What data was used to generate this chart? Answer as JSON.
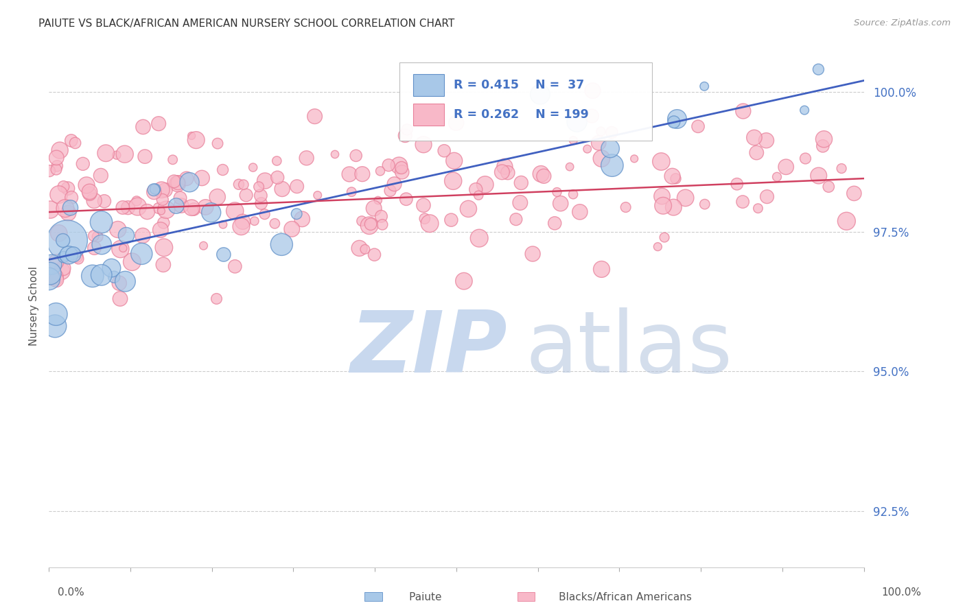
{
  "title": "PAIUTE VS BLACK/AFRICAN AMERICAN NURSERY SCHOOL CORRELATION CHART",
  "source": "Source: ZipAtlas.com",
  "ylabel": "Nursery School",
  "xlim": [
    0.0,
    1.0
  ],
  "ylim": [
    0.915,
    1.008
  ],
  "yticks": [
    0.925,
    0.95,
    0.975,
    1.0
  ],
  "ytick_labels": [
    "92.5%",
    "95.0%",
    "97.5%",
    "100.0%"
  ],
  "legend_r1": "R = 0.415",
  "legend_n1": "N =  37",
  "legend_r2": "R = 0.262",
  "legend_n2": "N = 199",
  "blue_fill": "#a8c8e8",
  "blue_edge": "#6090c8",
  "pink_fill": "#f8b8c8",
  "pink_edge": "#e8809a",
  "blue_line_color": "#4060c0",
  "pink_line_color": "#d04060",
  "watermark_zip_color": "#c8d8ee",
  "watermark_atlas_color": "#b8c8e0",
  "background_color": "#ffffff",
  "blue_trend_x": [
    0.0,
    1.0
  ],
  "blue_trend_y": [
    0.97,
    1.002
  ],
  "pink_trend_x": [
    0.0,
    1.0
  ],
  "pink_trend_y": [
    0.9785,
    0.9845
  ],
  "seed": 42
}
